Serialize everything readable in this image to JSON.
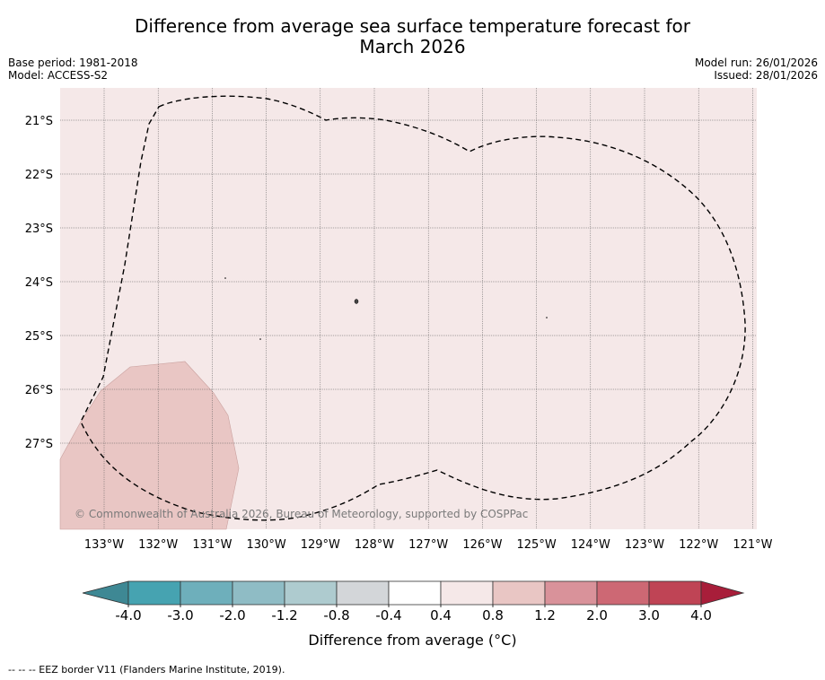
{
  "title_line1": "Difference from average sea surface temperature forecast for",
  "title_line2": "March 2026",
  "base_period": "Base period: 1981-2018",
  "model": "Model: ACCESS-S2",
  "model_run": "Model run: 26/01/2026",
  "issued": "Issued: 28/01/2026",
  "copyright": "© Commonwealth of Australia 2026, Bureau of Meteorology, supported by COSPPac",
  "lat_labels": [
    "21°S",
    "22°S",
    "23°S",
    "24°S",
    "25°S",
    "26°S",
    "27°S"
  ],
  "lon_labels": [
    "133°W",
    "132°W",
    "131°W",
    "130°W",
    "129°W",
    "128°W",
    "127°W",
    "126°W",
    "125°W",
    "124°W",
    "123°W",
    "122°W",
    "121°W"
  ],
  "colorbar": {
    "ticks": [
      "-4.0",
      "-3.0",
      "-2.0",
      "-1.2",
      "-0.8",
      "-0.4",
      "0.4",
      "0.8",
      "1.2",
      "2.0",
      "3.0",
      "4.0"
    ],
    "colors": [
      "#3e8894",
      "#46a3b1",
      "#6eafbb",
      "#8fbcc5",
      "#aecbcf",
      "#d3d6d9",
      "#ffffff",
      "#f5e8e8",
      "#e9c6c4",
      "#d9929a",
      "#cd6874",
      "#bf4455",
      "#a81e3a"
    ],
    "label": "Difference from average (°C)"
  },
  "colors": {
    "ocean_bg": "#f5e8e8",
    "warm_region": "#e9c6c4",
    "eez_line": "#000000"
  },
  "footnote": "-- -- -- EEZ border V11 (Flanders Marine Institute, 2019)."
}
